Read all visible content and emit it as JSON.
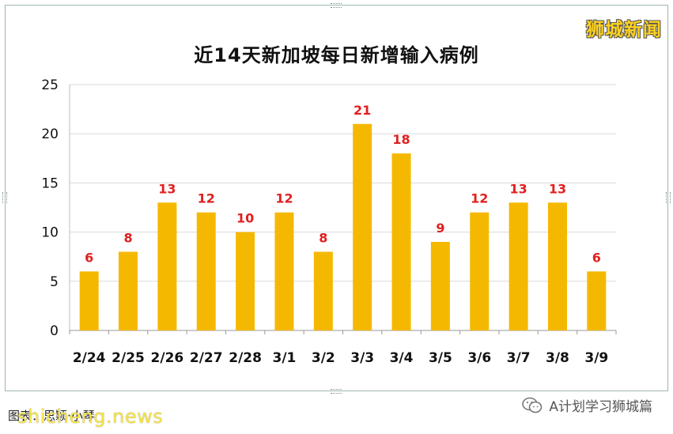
{
  "brand": "狮城新闻",
  "footer": {
    "credit": "图表：思颖·小琴",
    "watermark": "shicheng.news",
    "wechat_account": "A计划学习狮城篇"
  },
  "colors": {
    "bar": "#f5b800",
    "label": "#e02020",
    "brand": "#ffd21f"
  },
  "chart_data": {
    "type": "bar",
    "title": "近14天新加坡每日新增输入病例",
    "xlabel": "",
    "ylabel": "",
    "categories": [
      "2/24",
      "2/25",
      "2/26",
      "2/27",
      "2/28",
      "3/1",
      "3/2",
      "3/3",
      "3/4",
      "3/5",
      "3/6",
      "3/7",
      "3/8",
      "3/9"
    ],
    "values": [
      6,
      8,
      13,
      12,
      10,
      12,
      8,
      21,
      18,
      9,
      12,
      13,
      13,
      6
    ],
    "ylim": [
      0,
      25
    ],
    "yticks": [
      0,
      5,
      10,
      15,
      20,
      25
    ],
    "grid": true,
    "data_labels": true
  }
}
